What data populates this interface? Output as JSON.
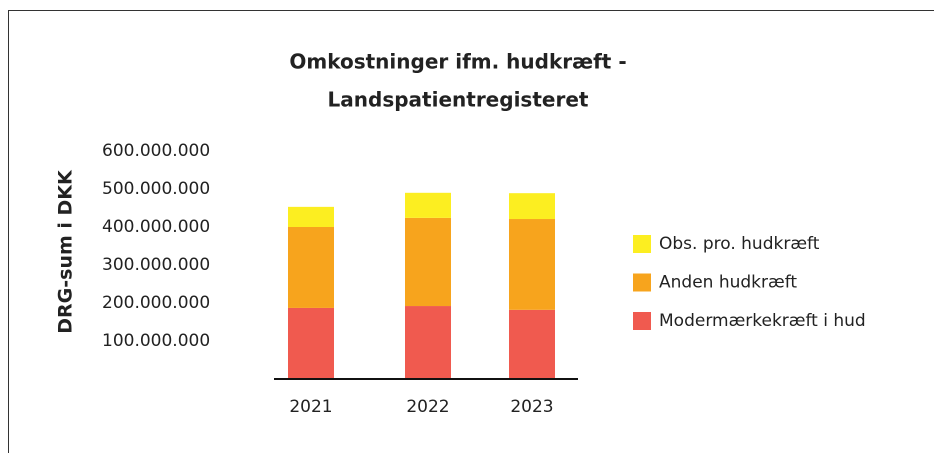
{
  "chart_data": {
    "type": "stacked_bar",
    "title": [
      "Omkostninger ifm. hudkræft -",
      "Landspatientregisteret"
    ],
    "y_label": "DRG-sum i DKK",
    "categories": [
      "2021",
      "2022",
      "2023"
    ],
    "series": [
      {
        "name": "Modermærkekræft i hud",
        "color": "#f05a4f",
        "values": [
          187000000,
          192000000,
          182000000
        ]
      },
      {
        "name": "Anden hudkræft",
        "color": "#f7a41d",
        "values": [
          213000000,
          232000000,
          239000000
        ]
      },
      {
        "name": "Obs. pro. hudkræft",
        "color": "#fcee21",
        "values": [
          53000000,
          66000000,
          68000000
        ]
      }
    ],
    "ylim": [
      0,
      600000000
    ],
    "yticks": [
      {
        "value": 100000000,
        "label": "100.000.000"
      },
      {
        "value": 200000000,
        "label": "200.000.000"
      },
      {
        "value": 300000000,
        "label": "300.000.000"
      },
      {
        "value": 400000000,
        "label": "400.000.000"
      },
      {
        "value": 500000000,
        "label": "500.000.000"
      },
      {
        "value": 600000000,
        "label": "600.000.000"
      }
    ],
    "grid": false,
    "legend": "right"
  }
}
